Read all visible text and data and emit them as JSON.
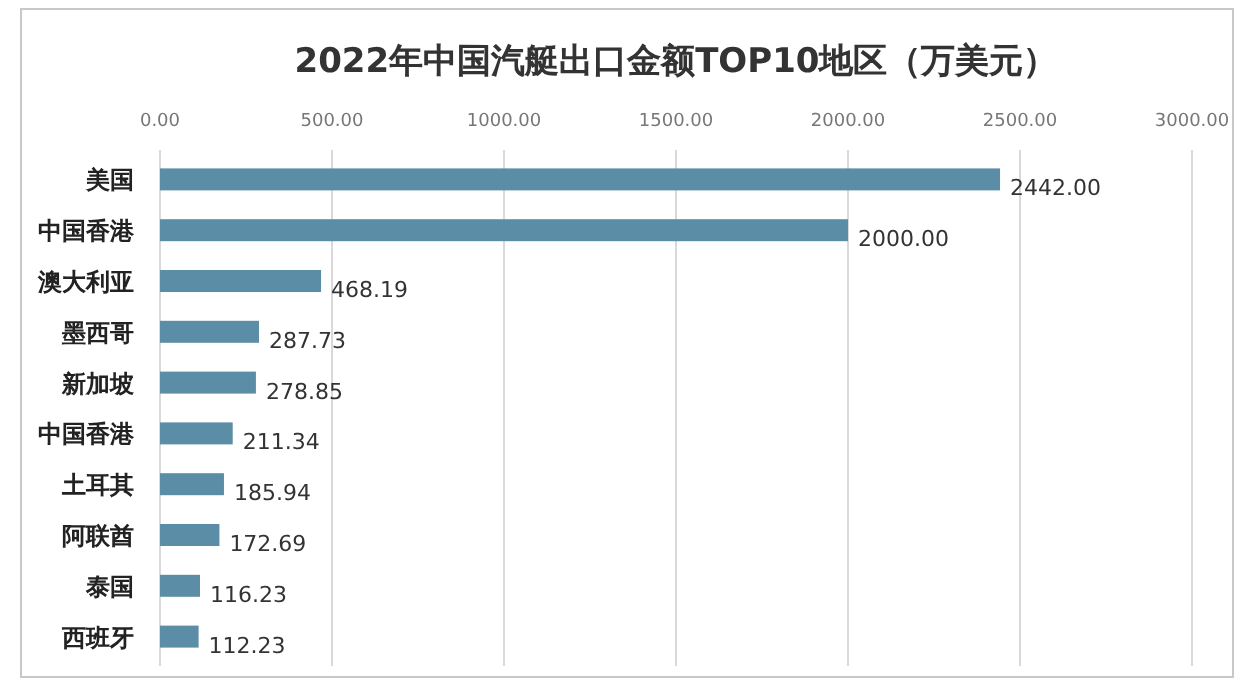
{
  "chart_data": {
    "type": "bar",
    "orientation": "horizontal",
    "title": "2022年中国汽艇出口金额TOP10地区（万美元）",
    "categories": [
      "美国",
      "中国香港",
      "澳大利亚",
      "墨西哥",
      "新加坡",
      "中国香港",
      "土耳其",
      "阿联酋",
      "泰国",
      "西班牙"
    ],
    "values": [
      2442.0,
      2000.0,
      468.19,
      287.73,
      278.85,
      211.34,
      185.94,
      172.69,
      116.23,
      112.23
    ],
    "value_labels": [
      "2442.00",
      "2000.00",
      "468.19",
      "287.73",
      "278.85",
      "211.34",
      "185.94",
      "172.69",
      "116.23",
      "112.23"
    ],
    "color": "#5b8ea6",
    "xlim": [
      0,
      3000
    ],
    "xticks": [
      {
        "value": 0,
        "label": "0.00"
      },
      {
        "value": 500,
        "label": "500.00"
      },
      {
        "value": 1000,
        "label": "1000.00"
      },
      {
        "value": 1500,
        "label": "1500.00"
      },
      {
        "value": 2000,
        "label": "2000.00"
      },
      {
        "value": 2500,
        "label": "2500.00"
      },
      {
        "value": 3000,
        "label": "3000.00"
      }
    ],
    "grid": "x"
  }
}
